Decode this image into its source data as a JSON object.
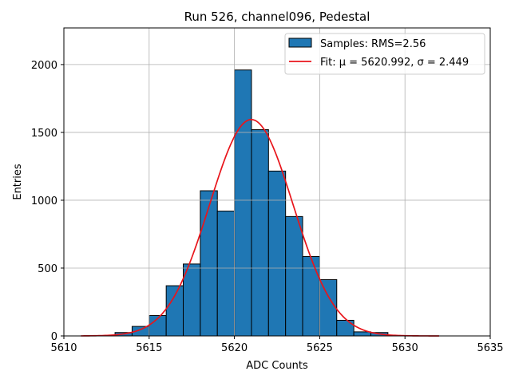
{
  "chart_data": {
    "type": "bar",
    "title": "Run 526, channel096, Pedestal",
    "xlabel": "ADC Counts",
    "ylabel": "Entries",
    "xlim": [
      5610,
      5635
    ],
    "ylim": [
      0,
      2270
    ],
    "xticks": [
      5610,
      5615,
      5620,
      5625,
      5630,
      5635
    ],
    "yticks": [
      0,
      500,
      1000,
      1500,
      2000
    ],
    "grid": true,
    "legend_position": "top-right",
    "series": [
      {
        "name": "Samples: RMS=2.56",
        "kind": "histogram",
        "color": "#1f77b4",
        "edgecolor": "#000000",
        "bins": [
          {
            "x0": 5613,
            "x1": 5614,
            "value": 25
          },
          {
            "x0": 5614,
            "x1": 5615,
            "value": 70
          },
          {
            "x0": 5615,
            "x1": 5616,
            "value": 150
          },
          {
            "x0": 5616,
            "x1": 5617,
            "value": 370
          },
          {
            "x0": 5617,
            "x1": 5618,
            "value": 530
          },
          {
            "x0": 5618,
            "x1": 5619,
            "value": 1070
          },
          {
            "x0": 5619,
            "x1": 5620,
            "value": 920
          },
          {
            "x0": 5620,
            "x1": 5621,
            "value": 1960
          },
          {
            "x0": 5621,
            "x1": 5622,
            "value": 1520
          },
          {
            "x0": 5622,
            "x1": 5623,
            "value": 1215
          },
          {
            "x0": 5623,
            "x1": 5624,
            "value": 880
          },
          {
            "x0": 5624,
            "x1": 5625,
            "value": 585
          },
          {
            "x0": 5625,
            "x1": 5626,
            "value": 415
          },
          {
            "x0": 5626,
            "x1": 5627,
            "value": 115
          },
          {
            "x0": 5627,
            "x1": 5628,
            "value": 30
          },
          {
            "x0": 5628,
            "x1": 5629,
            "value": 25
          }
        ]
      },
      {
        "name": "Fit: μ = 5620.992, σ = 2.449",
        "kind": "gaussian",
        "color": "#e8151b",
        "mu": 5620.992,
        "sigma": 2.449,
        "amplitude": 1595,
        "xrange": [
          5611,
          5632
        ]
      }
    ]
  }
}
